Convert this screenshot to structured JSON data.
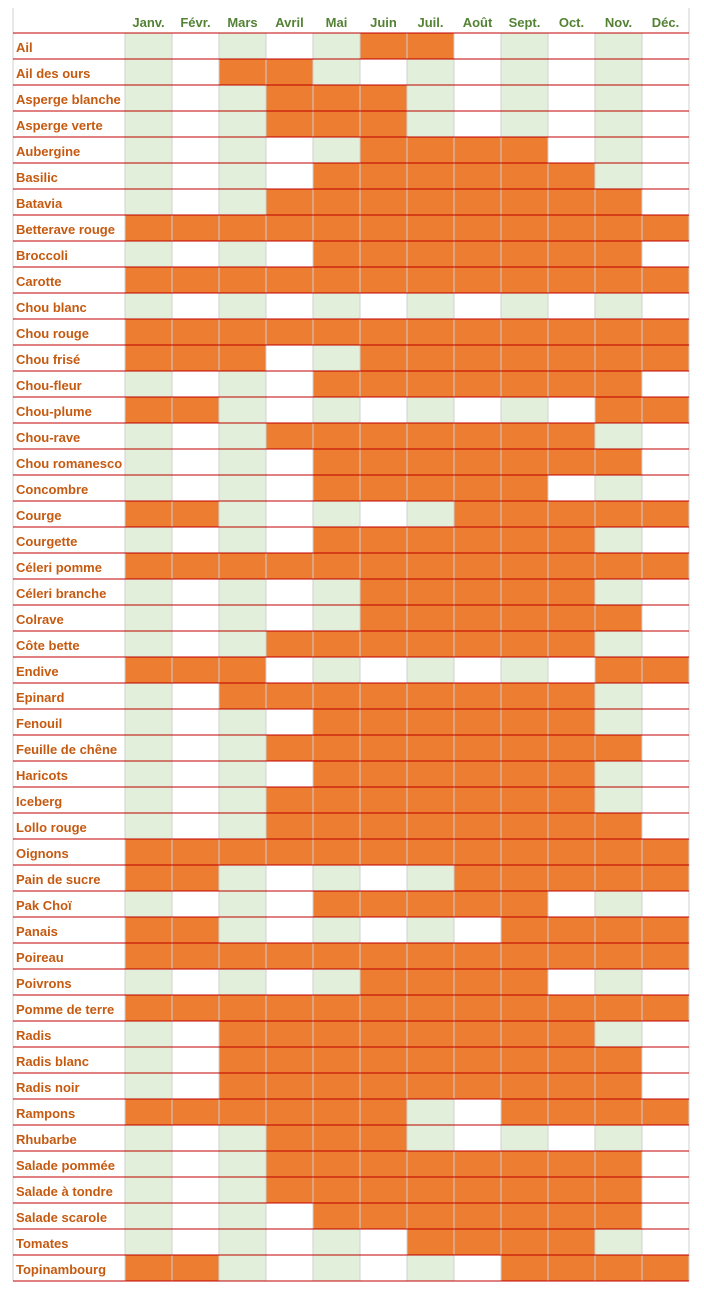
{
  "chart_data": {
    "type": "table",
    "months": [
      "Janv.",
      "Févr.",
      "Mars",
      "Avril",
      "Mai",
      "Juin",
      "Juil.",
      "Août",
      "Sept.",
      "Oct.",
      "Nov.",
      "Déc."
    ],
    "rows": [
      {
        "name": "Ail",
        "months": [
          6,
          7
        ]
      },
      {
        "name": "Ail des ours",
        "months": [
          3,
          4
        ]
      },
      {
        "name": "Asperge blanche",
        "months": [
          4,
          5,
          6
        ]
      },
      {
        "name": "Asperge verte",
        "months": [
          4,
          5,
          6
        ]
      },
      {
        "name": "Aubergine",
        "months": [
          6,
          7,
          8,
          9
        ]
      },
      {
        "name": "Basilic",
        "months": [
          5,
          6,
          7,
          8,
          9,
          10
        ]
      },
      {
        "name": "Batavia",
        "months": [
          4,
          5,
          6,
          7,
          8,
          9,
          10,
          11
        ]
      },
      {
        "name": "Betterave rouge",
        "months": [
          1,
          2,
          3,
          4,
          5,
          6,
          7,
          8,
          9,
          10,
          11,
          12
        ]
      },
      {
        "name": "Broccoli",
        "months": [
          5,
          6,
          7,
          8,
          9,
          10,
          11
        ]
      },
      {
        "name": "Carotte",
        "months": [
          1,
          2,
          3,
          4,
          5,
          6,
          7,
          8,
          9,
          10,
          11,
          12
        ]
      },
      {
        "name": "Chou blanc",
        "months": []
      },
      {
        "name": "Chou rouge",
        "months": [
          1,
          2,
          3,
          4,
          5,
          6,
          7,
          8,
          9,
          10,
          11,
          12
        ]
      },
      {
        "name": "Chou frisé",
        "months": [
          1,
          2,
          3,
          6,
          7,
          8,
          9,
          10,
          11,
          12
        ]
      },
      {
        "name": "Chou-fleur",
        "months": [
          5,
          6,
          7,
          8,
          9,
          10,
          11
        ]
      },
      {
        "name": "Chou-plume",
        "months": [
          1,
          2,
          11,
          12
        ]
      },
      {
        "name": "Chou-rave",
        "months": [
          4,
          5,
          6,
          7,
          8,
          9,
          10
        ]
      },
      {
        "name": "Chou romanesco",
        "months": [
          5,
          6,
          7,
          8,
          9,
          10,
          11
        ]
      },
      {
        "name": "Concombre",
        "months": [
          5,
          6,
          7,
          8,
          9
        ]
      },
      {
        "name": "Courge",
        "months": [
          1,
          2,
          8,
          9,
          10,
          11,
          12
        ]
      },
      {
        "name": "Courgette",
        "months": [
          5,
          6,
          7,
          8,
          9,
          10
        ]
      },
      {
        "name": "Céleri pomme",
        "months": [
          1,
          2,
          3,
          4,
          5,
          6,
          7,
          8,
          9,
          10,
          11,
          12
        ]
      },
      {
        "name": "Céleri branche",
        "months": [
          6,
          7,
          8,
          9,
          10
        ]
      },
      {
        "name": "Colrave",
        "months": [
          6,
          7,
          8,
          9,
          10,
          11
        ]
      },
      {
        "name": "Côte bette",
        "months": [
          4,
          5,
          6,
          7,
          8,
          9,
          10
        ]
      },
      {
        "name": "Endive",
        "months": [
          1,
          2,
          3,
          11,
          12
        ]
      },
      {
        "name": "Epinard",
        "months": [
          3,
          4,
          5,
          6,
          7,
          8,
          9,
          10
        ]
      },
      {
        "name": "Fenouil",
        "months": [
          5,
          6,
          7,
          8,
          9,
          10
        ]
      },
      {
        "name": "Feuille de chêne",
        "months": [
          4,
          5,
          6,
          7,
          8,
          9,
          10,
          11
        ]
      },
      {
        "name": "Haricots",
        "months": [
          5,
          6,
          7,
          8,
          9,
          10
        ]
      },
      {
        "name": "Iceberg",
        "months": [
          4,
          5,
          6,
          7,
          8,
          9,
          10
        ]
      },
      {
        "name": "Lollo rouge",
        "months": [
          4,
          5,
          6,
          7,
          8,
          9,
          10,
          11
        ]
      },
      {
        "name": "Oignons",
        "months": [
          1,
          2,
          3,
          4,
          5,
          6,
          7,
          8,
          9,
          10,
          11,
          12
        ]
      },
      {
        "name": "Pain de sucre",
        "months": [
          1,
          2,
          8,
          9,
          10,
          11,
          12
        ]
      },
      {
        "name": "Pak Choï",
        "months": [
          5,
          6,
          7,
          8,
          9
        ]
      },
      {
        "name": "Panais",
        "months": [
          1,
          2,
          9,
          10,
          11,
          12
        ]
      },
      {
        "name": "Poireau",
        "months": [
          1,
          2,
          3,
          4,
          5,
          6,
          7,
          8,
          9,
          10,
          11,
          12
        ]
      },
      {
        "name": "Poivrons",
        "months": [
          6,
          7,
          8,
          9
        ]
      },
      {
        "name": "Pomme de terre",
        "months": [
          1,
          2,
          3,
          4,
          5,
          6,
          7,
          8,
          9,
          10,
          11,
          12
        ]
      },
      {
        "name": "Radis",
        "months": [
          3,
          4,
          5,
          6,
          7,
          8,
          9,
          10
        ]
      },
      {
        "name": "Radis blanc",
        "months": [
          3,
          4,
          5,
          6,
          7,
          8,
          9,
          10,
          11
        ]
      },
      {
        "name": "Radis noir",
        "months": [
          3,
          4,
          5,
          6,
          7,
          8,
          9,
          10,
          11
        ]
      },
      {
        "name": "Rampons",
        "months": [
          1,
          2,
          3,
          4,
          5,
          6,
          9,
          10,
          11,
          12
        ]
      },
      {
        "name": "Rhubarbe",
        "months": [
          4,
          5,
          6
        ]
      },
      {
        "name": "Salade pommée",
        "months": [
          4,
          5,
          6,
          7,
          8,
          9,
          10,
          11
        ]
      },
      {
        "name": "Salade à tondre",
        "months": [
          4,
          5,
          6,
          7,
          8,
          9,
          10,
          11
        ]
      },
      {
        "name": "Salade scarole",
        "months": [
          5,
          6,
          7,
          8,
          9,
          10,
          11
        ]
      },
      {
        "name": "Tomates",
        "months": [
          7,
          8,
          9,
          10
        ]
      },
      {
        "name": "Topinambourg",
        "months": [
          1,
          2,
          9,
          10,
          11,
          12
        ]
      }
    ],
    "colors": {
      "season": "#ed7d31",
      "shade": "#e2efda",
      "plain": "#ffffff",
      "row_line": "#c00000",
      "vegetable_text": "#c55a11",
      "month_text": "#548235",
      "grid": "#d0d0d0"
    }
  }
}
